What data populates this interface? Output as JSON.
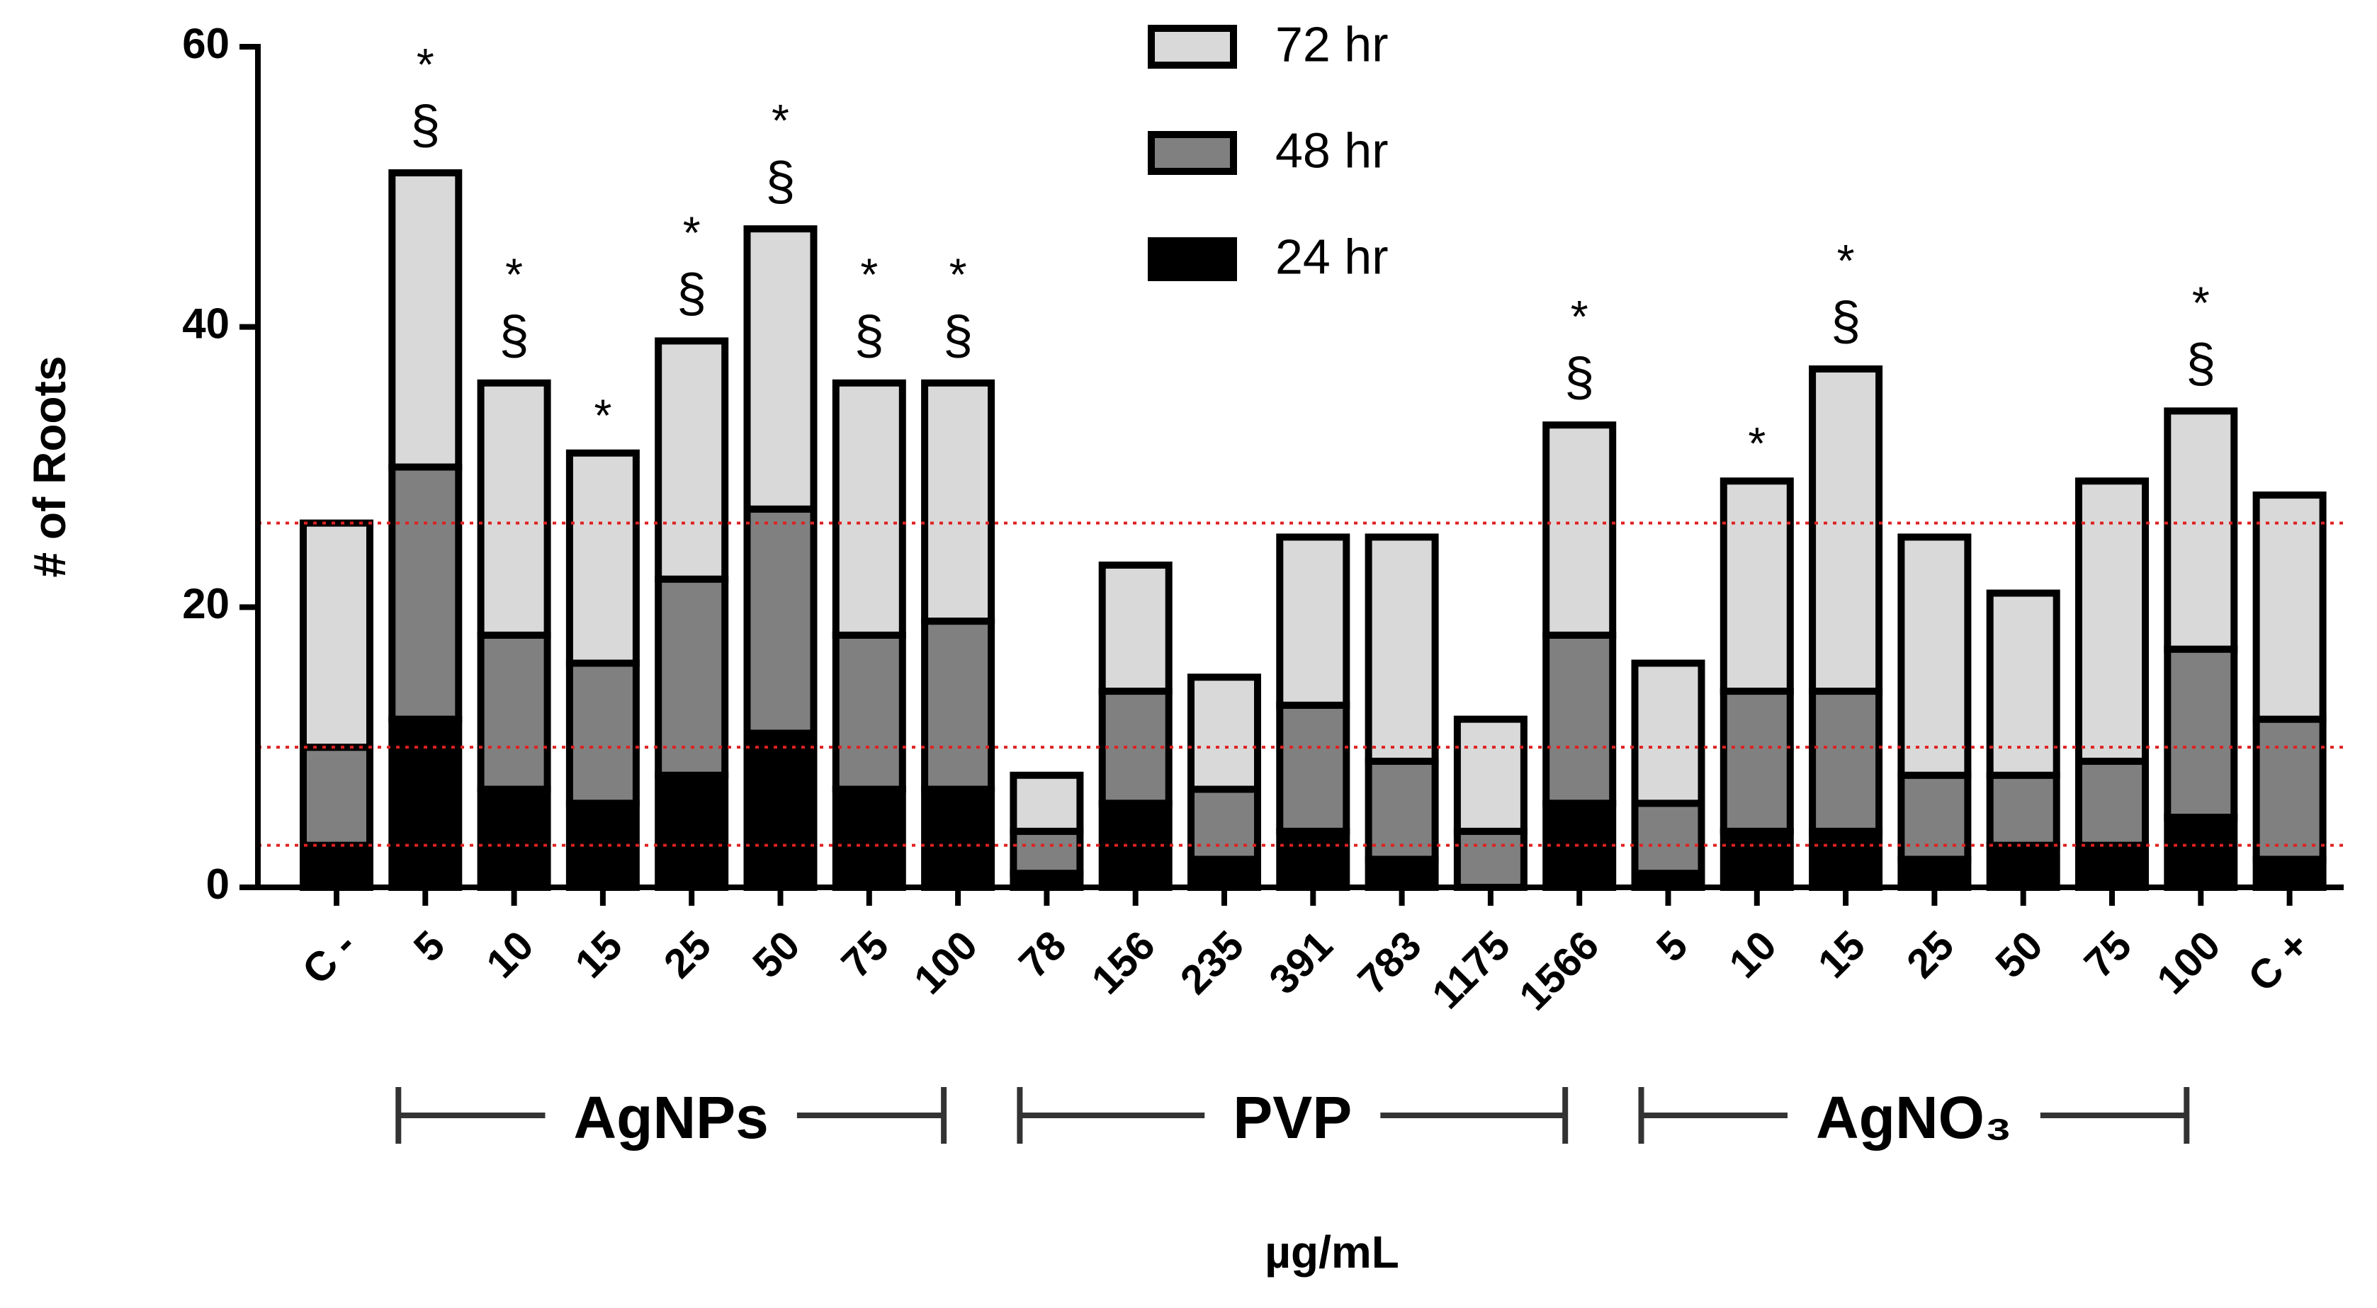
{
  "chart_data": {
    "type": "stacked_bar",
    "ylabel": "# of Roots",
    "xlabel": "µg/mL",
    "categories": [
      "C -",
      "5",
      "10",
      "15",
      "25",
      "50",
      "75",
      "100",
      "78",
      "156",
      "235",
      "391",
      "783",
      "1175",
      "1566",
      "5",
      "10",
      "15",
      "25",
      "50",
      "75",
      "100",
      "C +"
    ],
    "series": [
      {
        "name": "24 hr",
        "color": "#000000",
        "values": [
          3,
          12,
          7,
          6,
          8,
          11,
          7,
          7,
          1,
          6,
          2,
          4,
          2,
          0,
          6,
          1,
          4,
          4,
          2,
          3,
          3,
          5,
          2
        ]
      },
      {
        "name": "48 hr",
        "color": "#808080",
        "values": [
          7,
          18,
          11,
          10,
          14,
          16,
          11,
          12,
          3,
          8,
          5,
          9,
          7,
          4,
          12,
          5,
          10,
          10,
          6,
          5,
          6,
          12,
          10
        ]
      },
      {
        "name": "72 hr",
        "color": "#d9d9d9",
        "values": [
          16,
          21,
          18,
          15,
          17,
          20,
          18,
          17,
          4,
          9,
          8,
          12,
          16,
          8,
          15,
          10,
          15,
          23,
          17,
          13,
          20,
          17,
          16
        ]
      }
    ],
    "annotations": [
      [],
      [
        "*",
        "§"
      ],
      [
        "*",
        "§"
      ],
      [
        "*"
      ],
      [
        "*",
        "§"
      ],
      [
        "*",
        "§"
      ],
      [
        "*",
        "§"
      ],
      [
        "*",
        "§"
      ],
      [],
      [],
      [],
      [],
      [],
      [],
      [
        "*",
        "§"
      ],
      [],
      [
        "*"
      ],
      [
        "*",
        "§"
      ],
      [],
      [],
      [],
      [
        "*",
        "§"
      ],
      []
    ],
    "groups": [
      {
        "label": "AgNPs",
        "from": 1,
        "to": 7
      },
      {
        "label": "PVP",
        "from": 8,
        "to": 14
      },
      {
        "label": "AgNO₃",
        "from": 15,
        "to": 21
      }
    ],
    "reference_lines": [
      3,
      10,
      26
    ],
    "reference_color": "#e02020",
    "ylim": [
      0,
      60
    ],
    "yticks": [
      0,
      20,
      40,
      60
    ],
    "legend": "top"
  }
}
